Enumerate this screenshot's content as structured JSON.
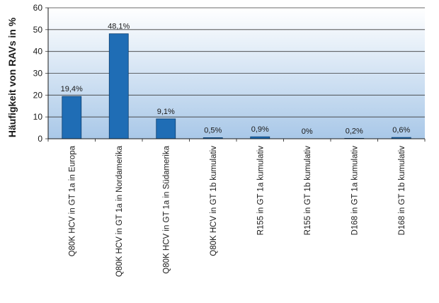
{
  "chart_data": {
    "type": "bar",
    "title": "",
    "xlabel": "",
    "ylabel": "Häufigkeit von RAVs in %",
    "ylim": [
      0,
      60
    ],
    "yticks": [
      0,
      10,
      20,
      30,
      40,
      50,
      60
    ],
    "grid": true,
    "legend": "none",
    "categories": [
      "Q80K HCV in GT 1a in Europa",
      "Q80K HCV in GT 1a in Nordamerika",
      "Q80K HCV in GT 1a in Südamerika",
      "Q80K HCV in GT 1b kumulativ",
      "R155 in GT 1a kumulativ",
      "R155 in GT 1b kumulativ",
      "D168 in GT 1a kumulativ",
      "D168 in GT 1b kumulativ"
    ],
    "values": [
      19.4,
      48.1,
      9.1,
      0.5,
      0.9,
      0,
      0.2,
      0.6
    ],
    "data_labels": [
      "19,4%",
      "48,1%",
      "9,1%",
      "0,5%",
      "0,9%",
      "0%",
      "0,2%",
      "0,6%"
    ]
  },
  "colors": {
    "bar": "#1f6db5",
    "bar_stroke": "#0d3f70",
    "plot_bg_top": "#ffffff",
    "plot_bg_bottom": "#a9c8e8",
    "grid": "#3a3a3a"
  }
}
